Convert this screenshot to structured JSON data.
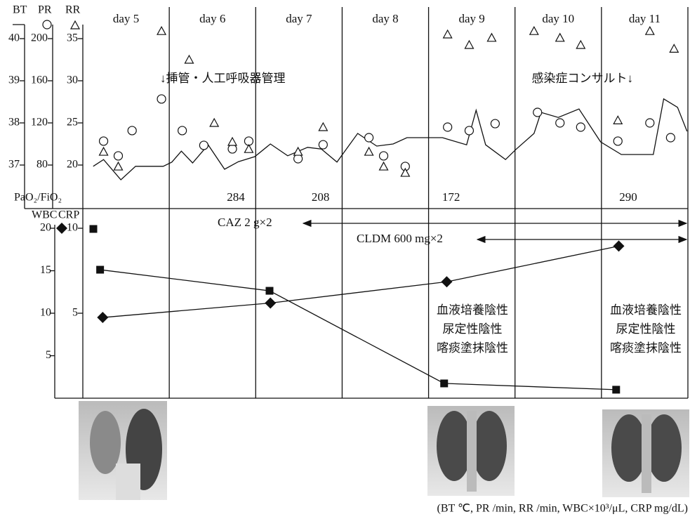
{
  "chart_data": [
    {
      "type": "line",
      "categories": [
        "day 5",
        "day 6",
        "day 7",
        "day 8",
        "day 9",
        "day 10",
        "day 11"
      ],
      "xlim": [
        4.5,
        11.5
      ],
      "ylim": [
        36.5,
        40.5
      ],
      "yticks": [
        37,
        38,
        39,
        40
      ],
      "y2lim": [
        60,
        220
      ],
      "y2ticks": [
        80,
        120,
        160,
        200
      ],
      "y3lim": [
        17.5,
        37.5
      ],
      "y3ticks": [
        20,
        25,
        30,
        35
      ],
      "series": [
        {
          "name": "BT",
          "marker": "line",
          "color": "#111111",
          "x": [
            4.62,
            4.74,
            4.94,
            5.11,
            5.43,
            5.53,
            5.64,
            5.77,
            5.95,
            6.14,
            6.3,
            6.49,
            6.67,
            6.87,
            7.1,
            7.26,
            7.44,
            7.68,
            7.9,
            8.09,
            8.25,
            8.66,
            8.94,
            9.05,
            9.16,
            9.39,
            9.51,
            9.72,
            9.8,
            10.0,
            10.24,
            10.49,
            10.73,
            11.1,
            11.22,
            11.38,
            11.49
          ],
          "values": [
            36.97,
            37.13,
            36.65,
            36.97,
            36.97,
            37.07,
            37.33,
            37.05,
            37.48,
            36.9,
            37.08,
            37.2,
            37.5,
            37.22,
            37.42,
            37.38,
            37.07,
            37.75,
            37.45,
            37.5,
            37.65,
            37.65,
            37.48,
            38.3,
            37.48,
            37.13,
            37.37,
            37.75,
            38.25,
            38.13,
            38.33,
            37.55,
            37.25,
            37.25,
            38.57,
            38.37,
            37.8
          ]
        },
        {
          "name": "PR",
          "marker": "circle",
          "axis": "y2",
          "color": "#111111",
          "x": [
            4.74,
            4.91,
            5.07,
            5.41,
            5.65,
            5.9,
            6.23,
            6.42,
            6.99,
            7.28,
            7.81,
            7.98,
            8.23,
            8.72,
            8.97,
            9.27,
            9.76,
            10.02,
            10.26,
            10.69,
            11.06,
            11.3
          ],
          "values": [
            102.7,
            88.7,
            112.7,
            142.7,
            112.7,
            98.7,
            95.3,
            102.7,
            86,
            99.3,
            106,
            88.7,
            78.7,
            116,
            112.7,
            119.3,
            130,
            120,
            116,
            102.7,
            120,
            106
          ]
        },
        {
          "name": "RR",
          "marker": "triangle",
          "axis": "y3",
          "color": "#111111",
          "x": [
            4.74,
            4.91,
            5.41,
            5.73,
            6.02,
            6.23,
            6.42,
            6.99,
            7.28,
            7.81,
            7.98,
            8.23,
            8.72,
            8.97,
            9.23,
            9.72,
            10.02,
            10.26,
            10.69,
            11.06,
            11.34
          ],
          "values": [
            21.58,
            19.83,
            35.9,
            32.5,
            25,
            22.75,
            21.9,
            21.58,
            24.5,
            21.58,
            19.83,
            19.08,
            35.5,
            34.25,
            35.1,
            35.9,
            35.1,
            34.25,
            25.3,
            35.9,
            33.8
          ]
        }
      ],
      "annotations": [
        "↓挿管・人工呼吸器管理",
        "感染症コンサルト↓"
      ],
      "pf_ratio": {
        "label": "PaO₂/FiO₂",
        "x": [
          6.27,
          7.25,
          8.76,
          10.81
        ],
        "values": [
          284,
          208,
          172,
          290
        ]
      }
    },
    {
      "type": "line",
      "xlim": [
        4.5,
        11.5
      ],
      "ylim": [
        0,
        20
      ],
      "yticks": [
        5,
        10,
        15,
        20
      ],
      "y2lim": [
        0,
        10
      ],
      "y2ticks": [
        5,
        10
      ],
      "series": [
        {
          "name": "WBC",
          "marker": "diamond",
          "color": "#111111",
          "x": [
            4.73,
            6.67,
            8.71,
            10.7
          ],
          "values": [
            9.5,
            11.2,
            13.7,
            17.9
          ]
        },
        {
          "name": "CRP",
          "marker": "square",
          "axis": "y2",
          "color": "#111111",
          "x": [
            4.7,
            6.66,
            8.68,
            10.67
          ],
          "values": [
            7.56,
            6.32,
            0.87,
            0.5
          ]
        }
      ],
      "treatments": [
        "CAZ 2 g×2",
        "CLDM 600 mg×2"
      ],
      "culture_notes": [
        [
          "血液培養陰性",
          "尿定性陰性",
          "喀痰塗抹陰性"
        ],
        [
          "血液培養陰性",
          "尿定性陰性",
          "喀痰塗抹陰性"
        ]
      ]
    }
  ],
  "note": "(BT ℃, PR /min, RR /min, WBC×10³/μL, CRP mg/dL)"
}
